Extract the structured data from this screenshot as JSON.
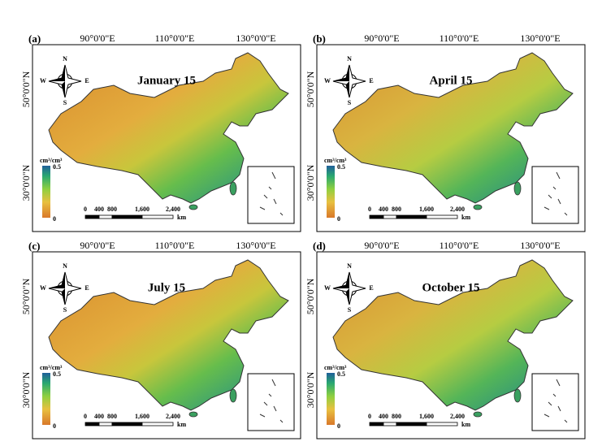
{
  "panels": [
    {
      "label": "(a)",
      "title": "January 15"
    },
    {
      "label": "(b)",
      "title": "April 15"
    },
    {
      "label": "(c)",
      "title": "July 15"
    },
    {
      "label": "(d)",
      "title": "October 15"
    }
  ],
  "longitude_labels": [
    "90°0'0\"E",
    "110°0'0\"E",
    "130°0'0\"E"
  ],
  "latitude_labels": [
    "50°0'0\"N",
    "30°0'0\"N"
  ],
  "compass": {
    "north": "N",
    "south": "S",
    "east": "E",
    "west": "W"
  },
  "legend": {
    "unit": "cm³/cm³",
    "max": "0.5",
    "min": "0"
  },
  "scale_bar": {
    "labels": [
      "0",
      "400",
      "800",
      "1,600",
      "2,400"
    ],
    "unit": "km"
  }
}
